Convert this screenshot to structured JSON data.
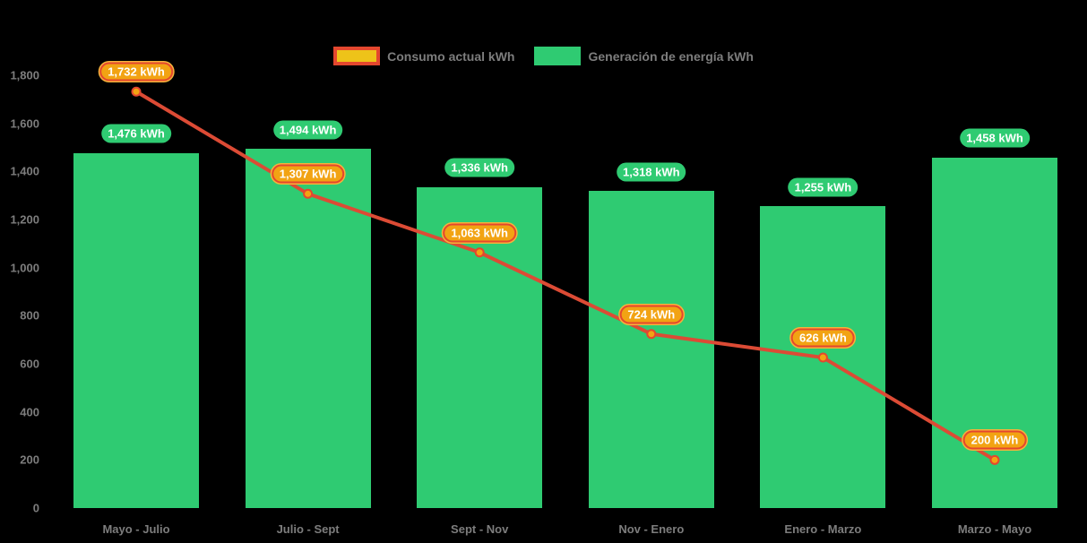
{
  "colors": {
    "background": "#000000",
    "bar": "#2fcb72",
    "line": "#dc4b35",
    "point_fill": "#f2a313",
    "point_stroke": "#e4472e",
    "badge_green_bg": "#2fcb72",
    "badge_orange_bg": "#f2a313",
    "badge_orange_border": "#e4472e",
    "badge_orange_glow": "#f5b33a",
    "badge_text": "#ffffff",
    "axis_text": "#7d7d7d",
    "legend_text": "#7d7d7d",
    "legend_line_swatch_fill": "#eec319",
    "legend_line_swatch_border": "#e4472e",
    "legend_bar_swatch_fill": "#2fcb72"
  },
  "legend": {
    "items": [
      {
        "id": "consumo",
        "label": "Consumo actual kWh",
        "swatch": "line"
      },
      {
        "id": "generacion",
        "label": "Generación de energía kWh",
        "swatch": "bar"
      }
    ]
  },
  "chart_data": {
    "type": "combo-bar-line",
    "categories": [
      "Mayo - Julio",
      "Julio - Sept",
      "Sept - Nov",
      "Nov - Enero",
      "Enero - Marzo",
      "Marzo - Mayo"
    ],
    "series": [
      {
        "name": "Consumo actual kWh",
        "type": "line",
        "values": [
          1732,
          1307,
          1063,
          724,
          626,
          200
        ],
        "labels": [
          "1,732 kWh",
          "1,307 kWh",
          "1,063 kWh",
          "724 kWh",
          "626 kWh",
          "200 kWh"
        ]
      },
      {
        "name": "Generación de energía kWh",
        "type": "bar",
        "values": [
          1476,
          1494,
          1336,
          1318,
          1255,
          1458
        ],
        "labels": [
          "1,476 kWh",
          "1,494 kWh",
          "1,336 kWh",
          "1,318 kWh",
          "1,255 kWh",
          "1,458 kWh"
        ]
      }
    ],
    "ylim": [
      0,
      1800
    ],
    "y_tick_step": 200,
    "y_tick_labels": [
      "0",
      "200",
      "400",
      "600",
      "800",
      "1,000",
      "1,200",
      "1,400",
      "1,600",
      "1,800"
    ],
    "grid": false,
    "legend_position": "top"
  }
}
